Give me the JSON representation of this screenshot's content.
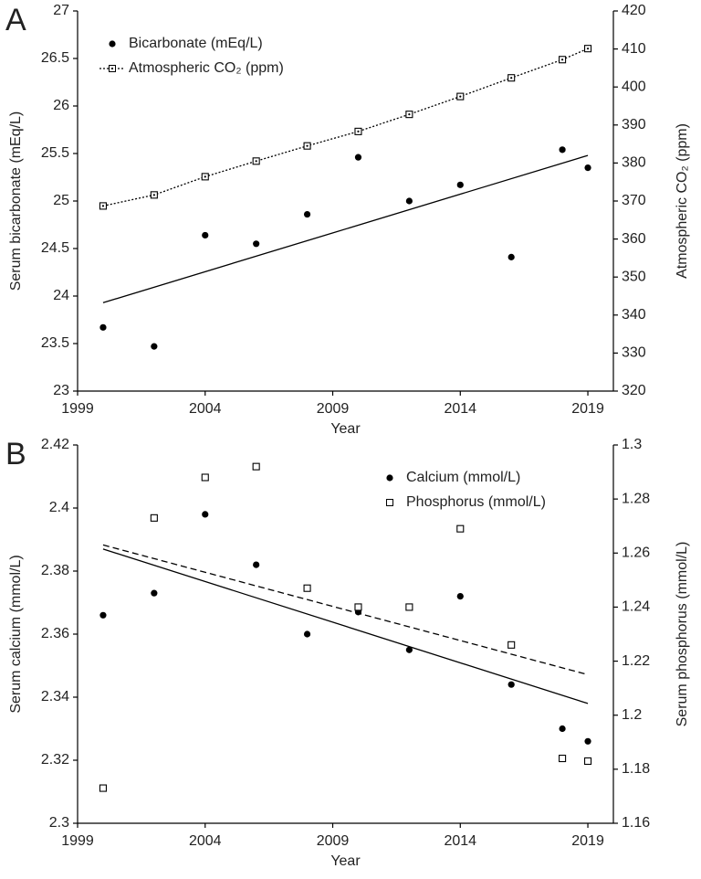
{
  "chart_data": [
    {
      "type": "scatter",
      "label": "A",
      "x_label": "Year",
      "y_label": "Serum bicarbonate (mEq/L)",
      "y2_label": "Atmospheric CO₂ (ppm)",
      "xlim": [
        1999,
        2020
      ],
      "xticks": [
        1999,
        2004,
        2009,
        2014,
        2019
      ],
      "ylim": [
        23,
        27
      ],
      "yticks": [
        23,
        23.5,
        24,
        24.5,
        25,
        25.5,
        26,
        26.5,
        27
      ],
      "y2lim": [
        320,
        420
      ],
      "y2ticks": [
        320,
        330,
        340,
        350,
        360,
        370,
        380,
        390,
        400,
        410,
        420
      ],
      "legend": "upper left",
      "x": [
        2000,
        2002,
        2004,
        2006,
        2008,
        2010,
        2012,
        2014,
        2016,
        2018,
        2019
      ],
      "series": [
        {
          "name": "Bicarbonate (mEq/L)",
          "color": "#000000",
          "marker": "circle",
          "values": [
            23.67,
            23.47,
            24.64,
            24.55,
            24.86,
            25.46,
            25.0,
            25.17,
            24.41,
            25.54,
            25.35
          ],
          "trend": {
            "x": [
              2000,
              2019
            ],
            "values": [
              23.93,
              25.48
            ],
            "style": "solid"
          }
        },
        {
          "name": "Atmospheric CO₂ (ppm)",
          "color": "#000000",
          "marker": "square-dot",
          "axis": "y2",
          "line": "dotted",
          "values": [
            368.7,
            371.6,
            376.4,
            380.5,
            384.5,
            388.3,
            392.8,
            397.5,
            402.4,
            407.2,
            410.1
          ]
        }
      ]
    },
    {
      "type": "scatter",
      "label": "B",
      "x_label": "Year",
      "y_label": "Serum calcium (mmol/L)",
      "y2_label": "Serum phosphorus (mmol/L)",
      "xlim": [
        1999,
        2020
      ],
      "xticks": [
        1999,
        2004,
        2009,
        2014,
        2019
      ],
      "ylim": [
        2.3,
        2.42
      ],
      "yticks": [
        2.3,
        2.32,
        2.34,
        2.36,
        2.38,
        2.4,
        2.42
      ],
      "y2lim": [
        1.16,
        1.3
      ],
      "y2ticks": [
        1.16,
        1.18,
        1.2,
        1.22,
        1.24,
        1.26,
        1.28,
        1.3
      ],
      "legend": "upper right",
      "x": [
        2000,
        2002,
        2004,
        2006,
        2008,
        2010,
        2012,
        2014,
        2016,
        2018,
        2019
      ],
      "series": [
        {
          "name": "Calcium (mmol/L)",
          "color": "#000000",
          "marker": "circle",
          "values": [
            2.366,
            2.373,
            2.398,
            2.382,
            2.36,
            2.367,
            2.355,
            2.372,
            2.344,
            2.33,
            2.326
          ],
          "trend": {
            "x": [
              2000,
              2019
            ],
            "values": [
              2.387,
              2.338
            ],
            "style": "solid"
          }
        },
        {
          "name": "Phosphorus (mmol/L)",
          "color": "#000000",
          "marker": "square",
          "axis": "y2",
          "values": [
            1.173,
            1.273,
            1.288,
            1.292,
            1.247,
            1.24,
            1.24,
            1.269,
            1.226,
            1.184,
            1.183
          ],
          "trend": {
            "x": [
              2000,
              2019
            ],
            "values": [
              1.263,
              1.215
            ],
            "style": "dashed"
          }
        }
      ]
    }
  ]
}
